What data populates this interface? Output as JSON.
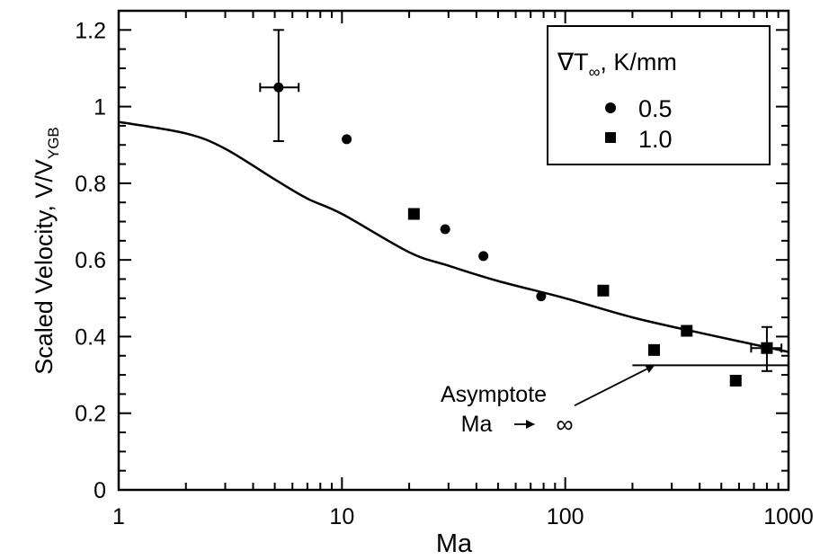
{
  "chart_data": {
    "type": "scatter",
    "title": "",
    "xlabel": "Ma",
    "ylabel": "Scaled Velocity, V/V",
    "ylabel_subscript": "YGB",
    "xscale": "log",
    "xlim": [
      1,
      1000
    ],
    "ylim": [
      0,
      1.25
    ],
    "x_tick_labels": [
      "1",
      "10",
      "100",
      "1000"
    ],
    "y_tick_labels": [
      "0",
      "0.2",
      "0.4",
      "0.6",
      "0.8",
      "1",
      "1.2"
    ],
    "legend": {
      "title_prefix": "∇T",
      "title_subscript": "∞",
      "title_suffix": ", K/mm",
      "placement": "top-right",
      "entries": [
        "0.5",
        "1.0"
      ]
    },
    "series": [
      {
        "name": "0.5",
        "marker": "circle",
        "points": [
          {
            "x": 5.2,
            "y": 1.05,
            "x_err": [
              4.3,
              6.4
            ],
            "y_err": [
              0.91,
              1.2
            ]
          },
          {
            "x": 10.5,
            "y": 0.915
          },
          {
            "x": 29,
            "y": 0.68
          },
          {
            "x": 43,
            "y": 0.61
          },
          {
            "x": 78,
            "y": 0.505
          }
        ]
      },
      {
        "name": "1.0",
        "marker": "square",
        "points": [
          {
            "x": 21,
            "y": 0.72
          },
          {
            "x": 148,
            "y": 0.52
          },
          {
            "x": 250,
            "y": 0.365
          },
          {
            "x": 350,
            "y": 0.415
          },
          {
            "x": 580,
            "y": 0.285
          },
          {
            "x": 800,
            "y": 0.37,
            "x_err": [
              680,
              930
            ],
            "y_err": [
              0.31,
              0.425
            ]
          }
        ]
      }
    ],
    "curve": [
      {
        "x": 1,
        "y": 0.96
      },
      {
        "x": 2,
        "y": 0.93
      },
      {
        "x": 3,
        "y": 0.89
      },
      {
        "x": 5,
        "y": 0.81
      },
      {
        "x": 7,
        "y": 0.76
      },
      {
        "x": 10,
        "y": 0.72
      },
      {
        "x": 20,
        "y": 0.62
      },
      {
        "x": 30,
        "y": 0.585
      },
      {
        "x": 50,
        "y": 0.545
      },
      {
        "x": 100,
        "y": 0.5
      },
      {
        "x": 200,
        "y": 0.45
      },
      {
        "x": 400,
        "y": 0.41
      },
      {
        "x": 1000,
        "y": 0.36
      }
    ],
    "asymptote": {
      "y": 0.325,
      "x_start": 200,
      "x_end": 1000
    },
    "annotation": {
      "line1": "Asymptote",
      "line2_left": "Ma",
      "line2_right": "∞",
      "arrow_from": {
        "x": 110,
        "y": 0.22
      },
      "arrow_to": {
        "x": 250,
        "y": 0.325
      }
    }
  }
}
